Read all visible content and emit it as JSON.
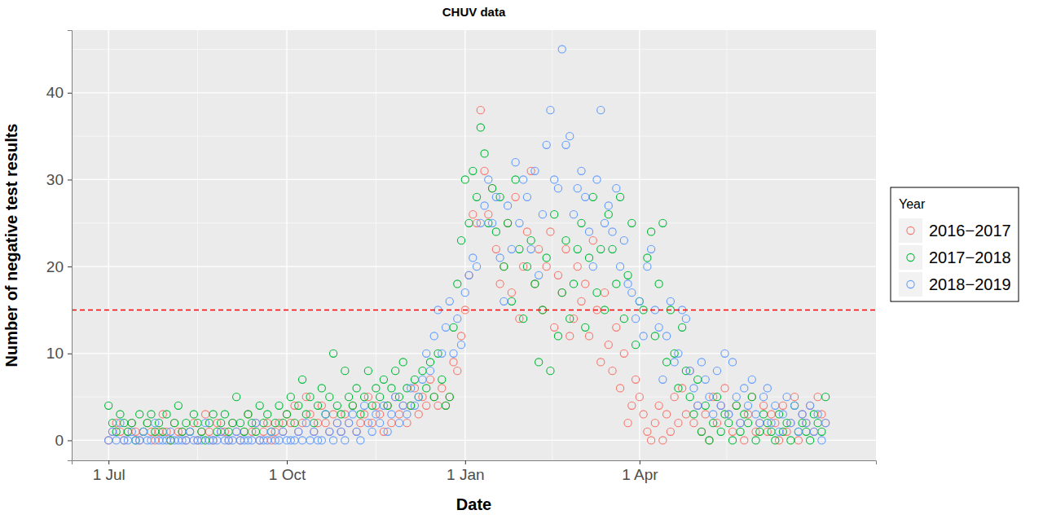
{
  "chart_data": {
    "type": "scatter",
    "title": "CHUV data",
    "x_label": "Date",
    "y_label": "Number of negative test results",
    "legend_title": "Year",
    "legend": "right",
    "grid": true,
    "marker": "circle-open",
    "reference_line": 15,
    "xlim": [
      -19,
      396
    ],
    "xticks": [
      {
        "value": 0,
        "label": "1 Jul"
      },
      {
        "value": 92,
        "label": "1 Oct"
      },
      {
        "value": 184,
        "label": "1 Jan"
      },
      {
        "value": 274,
        "label": "1 Apr"
      }
    ],
    "ylim": [
      -2.3,
      47.2
    ],
    "yticks": [
      0,
      10,
      20,
      30,
      40
    ],
    "x": [
      0,
      2,
      4,
      6,
      8,
      10,
      12,
      14,
      16,
      18,
      20,
      22,
      24,
      26,
      28,
      30,
      32,
      34,
      36,
      38,
      40,
      42,
      44,
      46,
      48,
      50,
      52,
      54,
      56,
      58,
      60,
      62,
      64,
      66,
      68,
      70,
      72,
      74,
      76,
      78,
      80,
      82,
      84,
      86,
      88,
      90,
      92,
      94,
      96,
      98,
      100,
      102,
      104,
      106,
      108,
      110,
      112,
      114,
      116,
      118,
      120,
      122,
      124,
      126,
      128,
      130,
      132,
      134,
      136,
      138,
      140,
      142,
      144,
      146,
      148,
      150,
      152,
      154,
      156,
      158,
      160,
      162,
      164,
      166,
      168,
      170,
      172,
      174,
      176,
      178,
      180,
      182,
      184,
      186,
      188,
      190,
      192,
      194,
      196,
      198,
      200,
      202,
      204,
      206,
      208,
      210,
      212,
      214,
      216,
      218,
      220,
      222,
      224,
      226,
      228,
      230,
      232,
      234,
      236,
      238,
      240,
      242,
      244,
      246,
      248,
      250,
      252,
      254,
      256,
      258,
      260,
      262,
      264,
      266,
      268,
      270,
      272,
      274,
      276,
      278,
      280,
      282,
      284,
      286,
      288,
      290,
      292,
      294,
      296,
      298,
      300,
      302,
      304,
      306,
      308,
      310,
      312,
      314,
      316,
      318,
      320,
      322,
      324,
      326,
      328,
      330,
      332,
      334,
      336,
      338,
      340,
      342,
      344,
      346,
      348,
      350,
      352,
      354,
      356,
      358,
      360,
      362,
      364,
      366,
      368,
      370
    ],
    "series": [
      {
        "name": "2016−2017",
        "color": "#F8766D",
        "values": [
          0,
          1,
          2,
          1,
          0,
          1,
          2,
          1,
          0,
          1,
          2,
          1,
          0,
          1,
          3,
          1,
          0,
          2,
          1,
          1,
          0,
          1,
          2,
          0,
          1,
          3,
          1,
          0,
          2,
          1,
          1,
          0,
          2,
          1,
          0,
          1,
          3,
          1,
          2,
          0,
          1,
          2,
          0,
          1,
          2,
          1,
          3,
          2,
          4,
          1,
          2,
          5,
          3,
          1,
          2,
          4,
          2,
          1,
          3,
          2,
          1,
          3,
          2,
          4,
          1,
          2,
          3,
          5,
          2,
          4,
          3,
          1,
          4,
          2,
          5,
          3,
          4,
          2,
          4,
          6,
          3,
          5,
          4,
          7,
          5,
          4,
          6,
          4,
          5,
          9,
          8,
          12,
          15,
          19,
          26,
          25,
          38,
          31,
          26,
          29,
          22,
          18,
          20,
          25,
          17,
          28,
          14,
          20,
          24,
          31,
          18,
          22,
          15,
          20,
          24,
          13,
          19,
          17,
          22,
          12,
          14,
          20,
          16,
          18,
          12,
          23,
          15,
          9,
          17,
          11,
          8,
          13,
          6,
          10,
          2,
          4,
          7,
          5,
          3,
          1,
          0,
          2,
          4,
          0,
          3,
          1,
          5,
          2,
          6,
          3,
          8,
          2,
          4,
          1,
          3,
          0,
          5,
          2,
          4,
          6,
          3,
          1,
          4,
          2,
          0,
          3,
          5,
          1,
          2,
          4,
          1,
          3,
          2,
          0,
          4,
          1,
          2,
          5,
          0,
          3,
          2,
          4,
          1,
          5,
          3,
          2
        ]
      },
      {
        "name": "2017−2018",
        "color": "#00BA38",
        "values": [
          4,
          2,
          1,
          3,
          2,
          1,
          2,
          0,
          3,
          1,
          2,
          3,
          1,
          2,
          1,
          3,
          0,
          2,
          4,
          1,
          2,
          1,
          3,
          2,
          1,
          0,
          2,
          3,
          1,
          2,
          3,
          1,
          2,
          5,
          2,
          1,
          3,
          2,
          1,
          4,
          2,
          3,
          1,
          2,
          4,
          2,
          3,
          5,
          2,
          4,
          7,
          3,
          5,
          2,
          4,
          6,
          3,
          5,
          10,
          4,
          3,
          8,
          5,
          4,
          6,
          3,
          5,
          8,
          4,
          6,
          5,
          7,
          4,
          6,
          8,
          5,
          9,
          6,
          4,
          7,
          5,
          8,
          6,
          9,
          5,
          10,
          7,
          4,
          5,
          13,
          18,
          23,
          30,
          25,
          31,
          28,
          36,
          33,
          25,
          29,
          24,
          28,
          20,
          25,
          16,
          30,
          22,
          14,
          20,
          23,
          18,
          9,
          15,
          21,
          8,
          26,
          12,
          17,
          23,
          14,
          18,
          22,
          25,
          13,
          21,
          28,
          17,
          22,
          15,
          26,
          22,
          18,
          28,
          14,
          19,
          25,
          11,
          16,
          15,
          21,
          24,
          12,
          18,
          25,
          9,
          15,
          10,
          6,
          13,
          8,
          5,
          3,
          7,
          1,
          4,
          0,
          2,
          5,
          1,
          3,
          2,
          0,
          4,
          1,
          3,
          2,
          5,
          0,
          1,
          3,
          2,
          1,
          0,
          3,
          1,
          2,
          0,
          4,
          1,
          2,
          1,
          0,
          3,
          2,
          1,
          5
        ]
      },
      {
        "name": "2018−2019",
        "color": "#619CFF",
        "values": [
          0,
          1,
          0,
          2,
          0,
          0,
          1,
          0,
          0,
          1,
          0,
          0,
          2,
          0,
          0,
          0,
          1,
          0,
          0,
          0,
          0,
          1,
          0,
          0,
          0,
          2,
          0,
          0,
          0,
          1,
          0,
          0,
          0,
          1,
          0,
          0,
          0,
          0,
          2,
          0,
          0,
          0,
          1,
          0,
          0,
          1,
          0,
          0,
          0,
          1,
          0,
          2,
          0,
          1,
          0,
          0,
          3,
          1,
          0,
          2,
          1,
          0,
          2,
          3,
          1,
          0,
          4,
          2,
          1,
          3,
          2,
          4,
          1,
          3,
          5,
          2,
          4,
          3,
          6,
          4,
          5,
          7,
          10,
          8,
          12,
          15,
          10,
          13,
          16,
          10,
          14,
          11,
          17,
          19,
          21,
          20,
          25,
          27,
          30,
          25,
          28,
          21,
          16,
          27,
          22,
          32,
          25,
          30,
          28,
          22,
          31,
          19,
          26,
          34,
          38,
          30,
          29,
          45,
          34,
          35,
          26,
          29,
          31,
          28,
          24,
          20,
          30,
          38,
          25,
          27,
          24,
          29,
          20,
          23,
          18,
          17,
          14,
          16,
          12,
          20,
          22,
          15,
          13,
          7,
          12,
          16,
          9,
          10,
          15,
          14,
          8,
          6,
          4,
          9,
          7,
          5,
          3,
          8,
          4,
          10,
          3,
          9,
          5,
          2,
          6,
          4,
          7,
          3,
          2,
          5,
          6,
          2,
          4,
          1,
          3,
          5,
          2,
          4,
          1,
          3,
          2,
          4,
          1,
          3,
          0,
          2
        ]
      }
    ]
  }
}
